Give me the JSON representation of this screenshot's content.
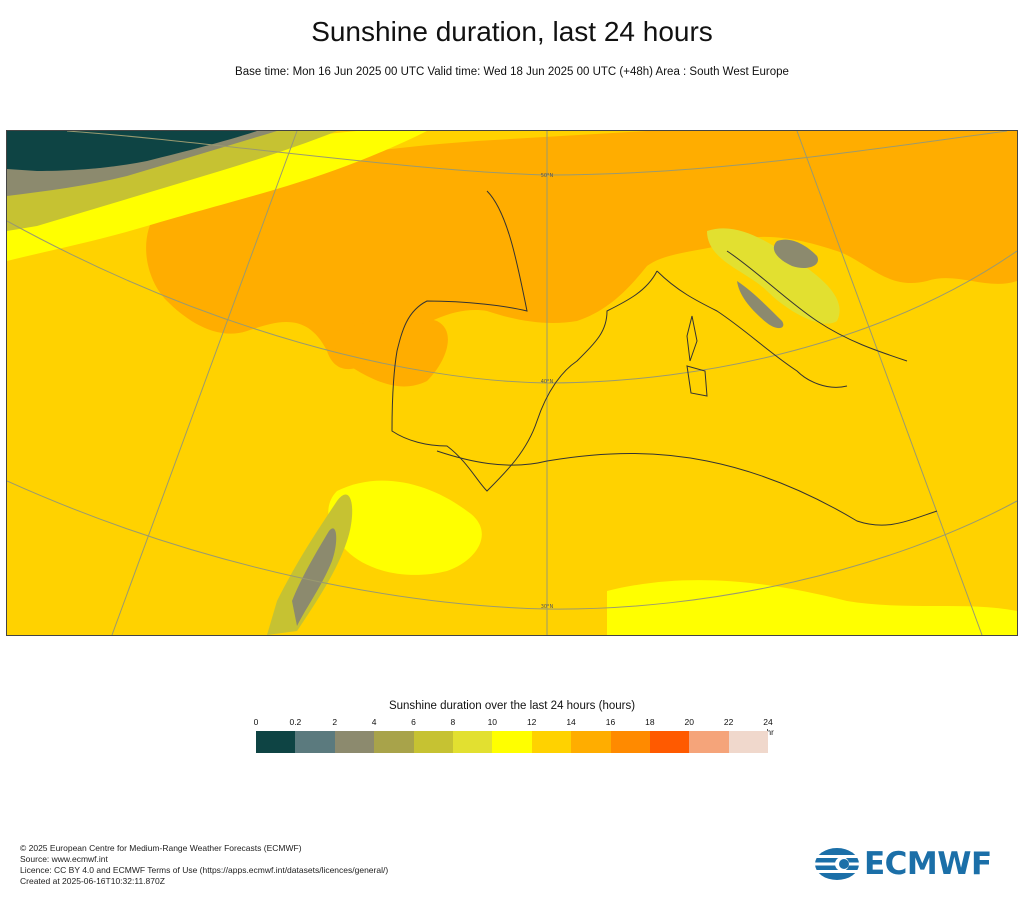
{
  "header": {
    "title": "Sunshine duration, last 24 hours",
    "subtitle": "Base time: Mon 16 Jun 2025 00 UTC Valid time: Wed 18 Jun 2025 00 UTC (+48h) Area : South West Europe"
  },
  "map": {
    "graticule_labels": [
      "50°N",
      "40°N",
      "30°N"
    ]
  },
  "legend": {
    "title": "Sunshine duration over the last 24 hours (hours)",
    "ticks": [
      "0",
      "0.2",
      "2",
      "4",
      "6",
      "8",
      "10",
      "12",
      "14",
      "16",
      "18",
      "20",
      "22",
      "24"
    ],
    "unit": "-hr",
    "colors": [
      "#0e4444",
      "#5b7a7e",
      "#8c8a6e",
      "#a8a34a",
      "#c6c232",
      "#e2e030",
      "#ffff00",
      "#ffd200",
      "#ffad00",
      "#ff8a00",
      "#ff5a00",
      "#f5a47a",
      "#f0d8cc"
    ]
  },
  "footer": {
    "lines": [
      "© 2025 European Centre for Medium-Range Weather Forecasts (ECMWF)",
      "Source: www.ecmwf.int",
      "Licence: CC BY 4.0 and ECMWF Terms of Use (https://apps.ecmwf.int/datasets/licences/general/)",
      "Created at 2025-06-16T10:32:11.870Z"
    ]
  },
  "logo": {
    "text": "ECMWF",
    "color": "#1b6fa8"
  }
}
